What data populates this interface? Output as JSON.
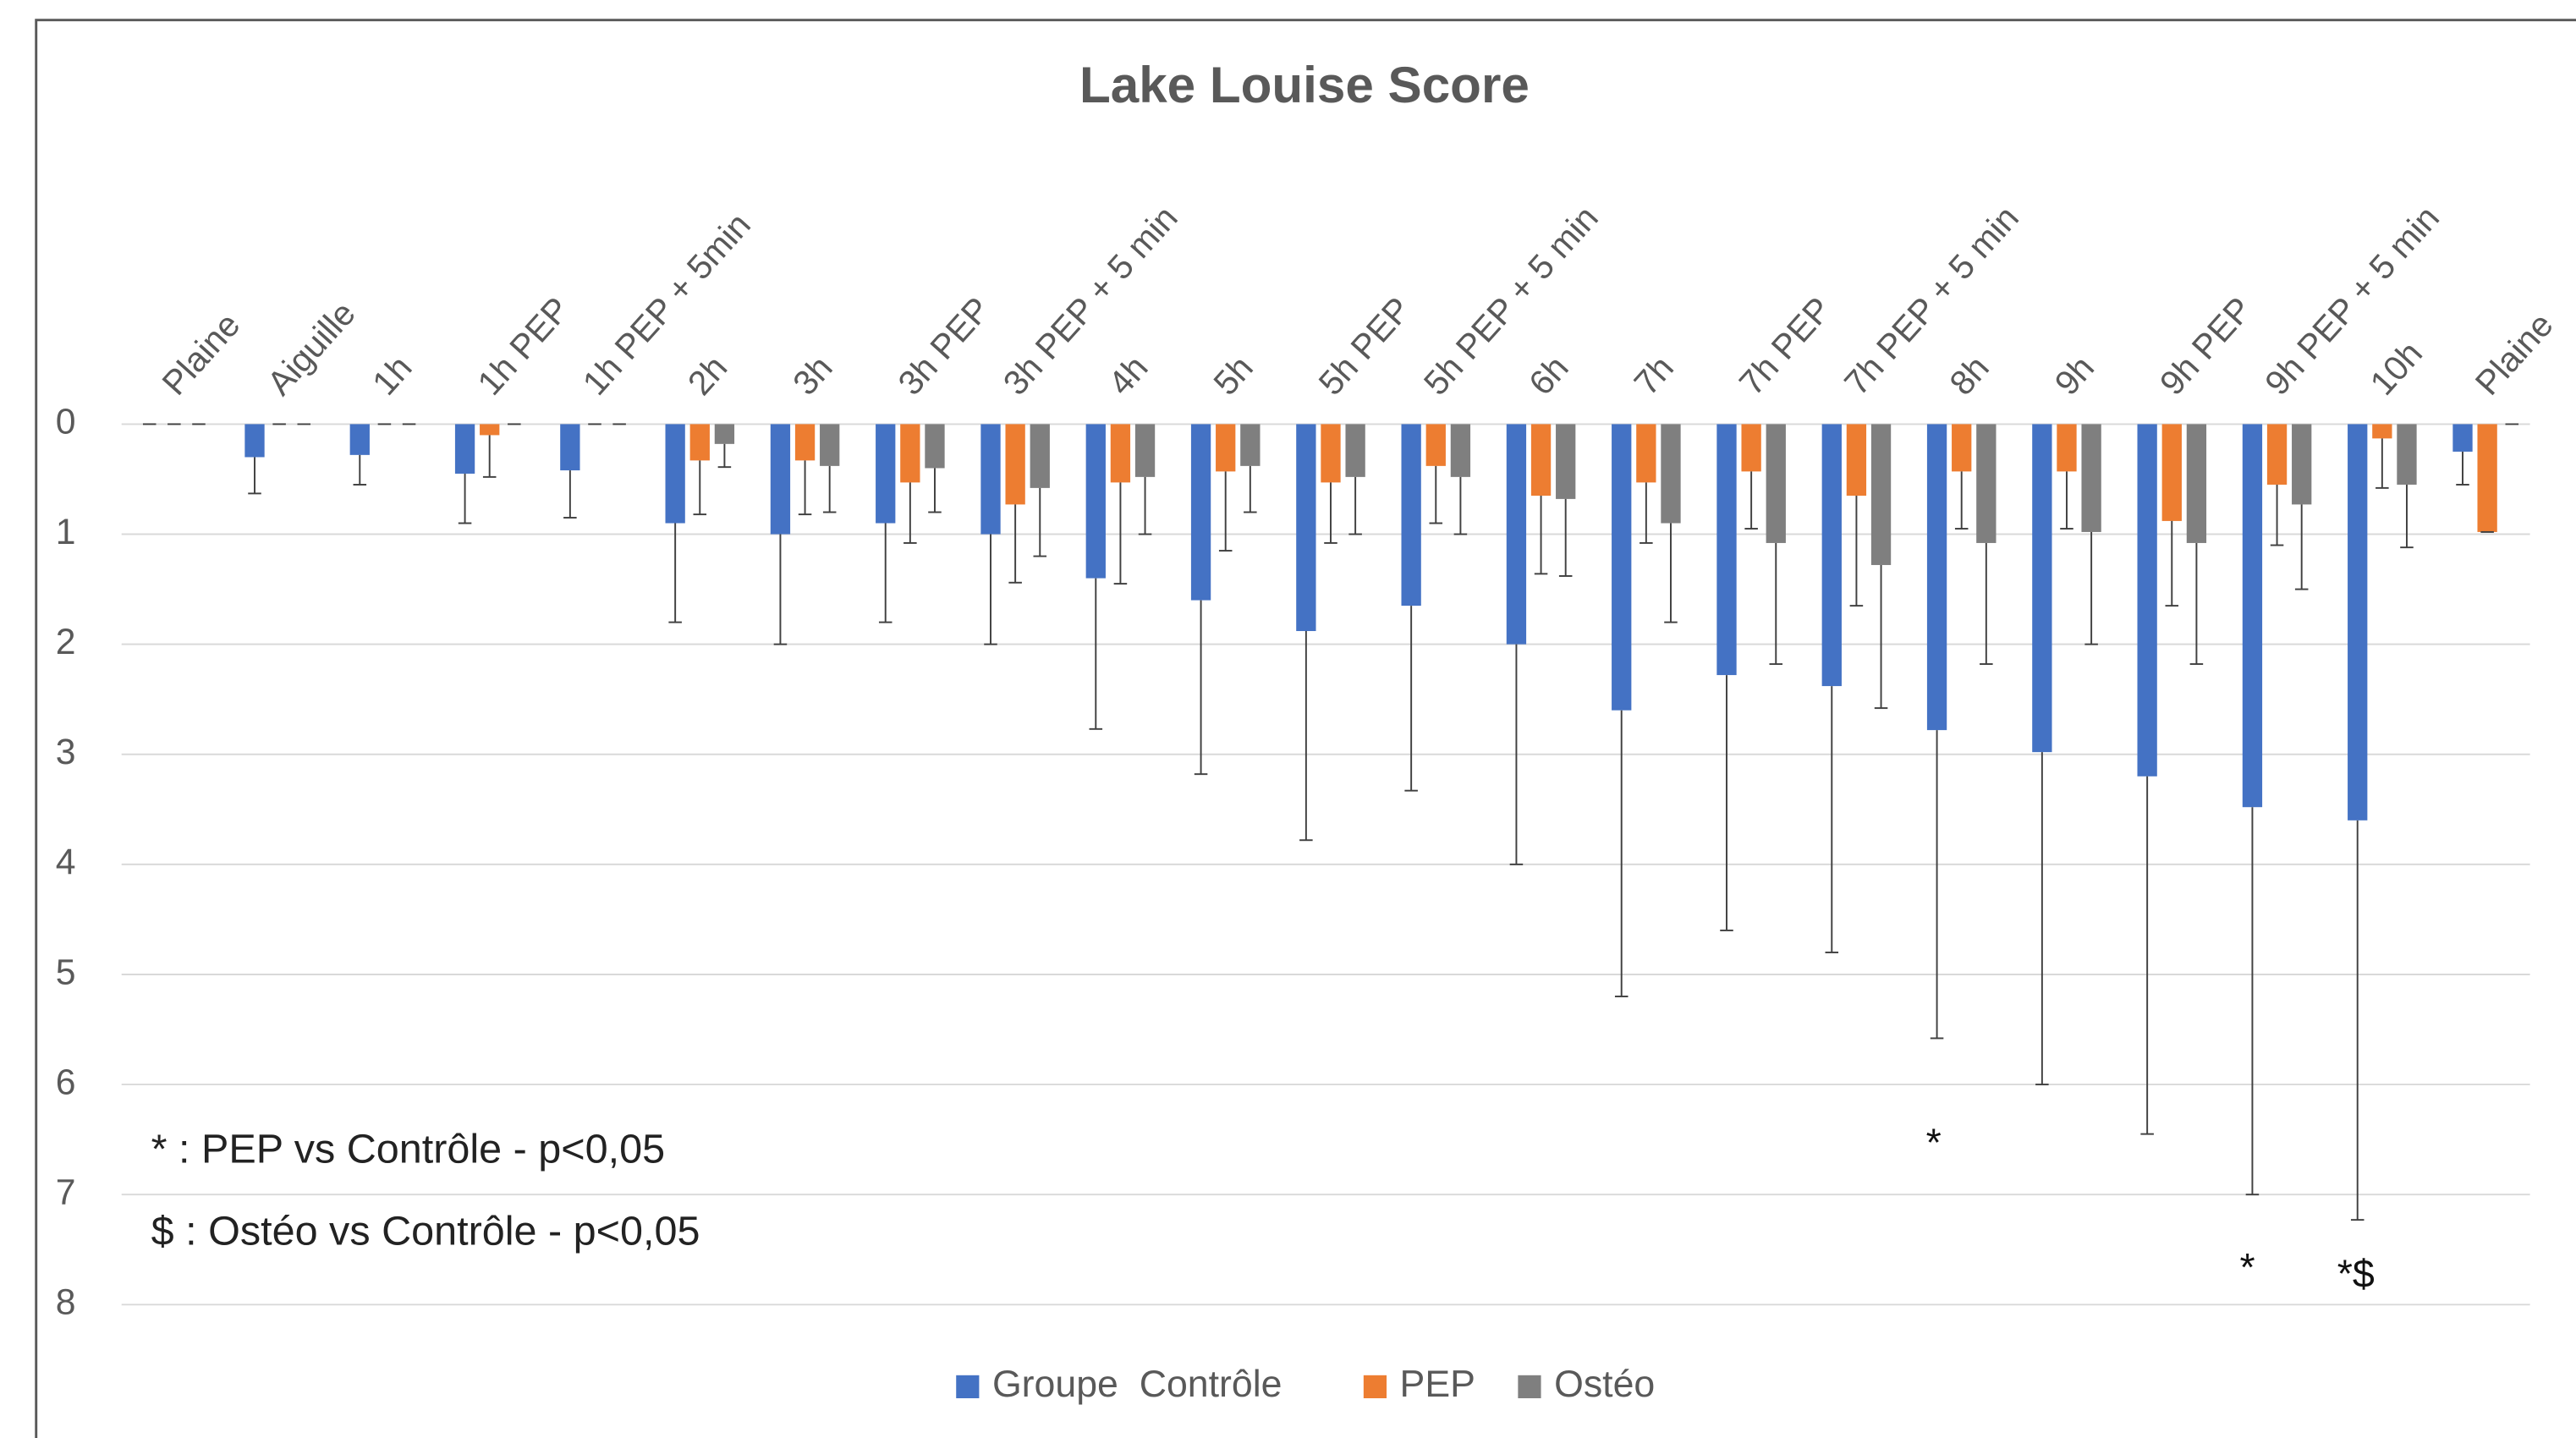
{
  "chart_data": {
    "type": "bar",
    "title": "Lake Louise Score",
    "categories": [
      "Plaine",
      "Aiguille",
      "1h",
      "1h PEP",
      "1h PEP + 5min",
      "2h",
      "3h",
      "3h PEP",
      "3h PEP + 5 min",
      "4h",
      "5h",
      "5h PEP",
      "5h PEP + 5 min",
      "6h",
      "7h",
      "7h PEP",
      "7h PEP + 5 min",
      "8h",
      "9h",
      "9h PEP",
      "9h PEP + 5 min",
      "10h",
      "Plaine"
    ],
    "series": [
      {
        "name": "Groupe  Contrôle",
        "color": "#4472c4",
        "values": [
          0,
          0.3,
          0.28,
          0.45,
          0.42,
          0.9,
          1.0,
          0.9,
          1.0,
          1.4,
          1.6,
          1.88,
          1.65,
          2.0,
          2.6,
          2.28,
          2.38,
          2.78,
          2.98,
          3.2,
          3.48,
          3.6,
          0.25
        ],
        "errors": [
          0,
          0.33,
          0.27,
          0.45,
          0.43,
          0.9,
          1.0,
          0.9,
          1.0,
          1.37,
          1.58,
          1.9,
          1.68,
          2.0,
          2.6,
          2.32,
          2.42,
          2.8,
          3.02,
          3.25,
          3.52,
          3.63,
          0.3
        ]
      },
      {
        "name": "PEP",
        "color": "#ed7d31",
        "values": [
          0,
          0,
          0,
          0.1,
          0,
          0.33,
          0.33,
          0.53,
          0.73,
          0.53,
          0.43,
          0.53,
          0.38,
          0.65,
          0.53,
          0.43,
          0.65,
          0.43,
          0.43,
          0.88,
          0.55,
          0.13,
          0.98
        ],
        "errors": [
          0,
          0,
          0,
          0.38,
          0,
          0.49,
          0.49,
          0.55,
          0.71,
          0.92,
          0.72,
          0.55,
          0.52,
          0.71,
          0.55,
          0.52,
          1.0,
          0.52,
          0.52,
          0.77,
          0.55,
          0.45,
          0
        ]
      },
      {
        "name": "Ostéo",
        "color": "#7f7f7f",
        "values": [
          0,
          0,
          0,
          0,
          0,
          0.18,
          0.38,
          0.4,
          0.58,
          0.48,
          0.38,
          0.48,
          0.48,
          0.68,
          0.9,
          1.08,
          1.28,
          1.08,
          0.98,
          1.08,
          0.73,
          0.55,
          0
        ],
        "errors": [
          0,
          0,
          0,
          0,
          0,
          0.21,
          0.42,
          0.4,
          0.62,
          0.52,
          0.42,
          0.52,
          0.52,
          0.7,
          0.9,
          1.1,
          1.3,
          1.1,
          1.02,
          1.1,
          0.77,
          0.57,
          0
        ]
      }
    ],
    "ylim": [
      0,
      8
    ],
    "yticks": [
      0,
      1,
      2,
      3,
      4,
      5,
      6,
      7,
      8
    ],
    "y_inverted": true,
    "grid": true,
    "legend": "bottom",
    "notes": [
      "* : PEP vs Contrôle - p<0,05",
      "$ : Ostéo vs Contrôle - p<0,05"
    ],
    "significance_marks": [
      "*",
      "*",
      "*$"
    ]
  }
}
